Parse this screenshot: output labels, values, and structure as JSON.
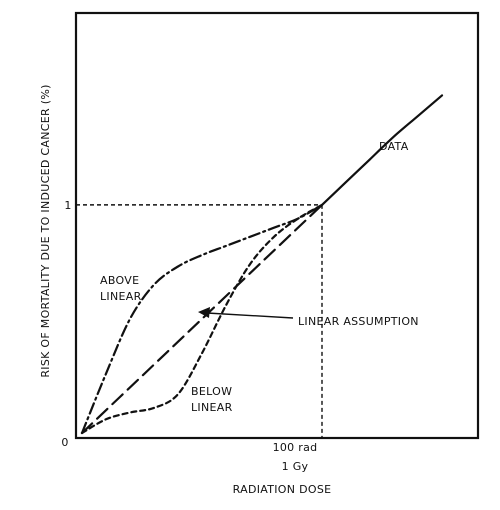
{
  "chart_data": {
    "type": "line",
    "title": "",
    "xlabel": "RADIATION DOSE",
    "ylabel": "RISK OF MORTALITY DUE TO INDUCED CANCER (%)",
    "x_tick_labels": {
      "origin": "0",
      "dose_line1": "100 rad",
      "dose_line2": "1 Gy"
    },
    "y_tick_labels": {
      "one": "1"
    },
    "xlim": [
      0,
      150
    ],
    "ylim": [
      0,
      1.6
    ],
    "reference": {
      "x": 100,
      "y": 1
    },
    "grid": false,
    "legend": "none",
    "series": [
      {
        "key": "data",
        "name": "DATA",
        "style": "solid",
        "x": [
          100,
          110,
          120,
          130,
          140,
          150
        ],
        "y": [
          1.0,
          1.1,
          1.2,
          1.3,
          1.39,
          1.48
        ]
      },
      {
        "key": "linear",
        "name": "LINEAR ASSUMPTION",
        "style": "long-dash",
        "x": [
          0,
          25,
          50,
          75,
          100
        ],
        "y": [
          0,
          0.25,
          0.5,
          0.75,
          1.0
        ]
      },
      {
        "key": "above",
        "name": "ABOVE LINEAR",
        "style": "dash-dot",
        "x": [
          0,
          10,
          20,
          30,
          40,
          50,
          60,
          70,
          80,
          90,
          100
        ],
        "y": [
          0,
          0.26,
          0.5,
          0.65,
          0.73,
          0.78,
          0.82,
          0.86,
          0.9,
          0.94,
          1.0
        ]
      },
      {
        "key": "below",
        "name": "BELOW LINEAR",
        "style": "short-dash",
        "x": [
          0,
          10,
          20,
          30,
          40,
          50,
          60,
          70,
          80,
          90,
          100
        ],
        "y": [
          0,
          0.06,
          0.09,
          0.11,
          0.17,
          0.35,
          0.56,
          0.74,
          0.86,
          0.94,
          1.0
        ]
      }
    ],
    "annotations": {
      "data": "DATA",
      "above_line1": "ABOVE",
      "above_line2": "LINEAR",
      "below_line1": "BELOW",
      "below_line2": "LINEAR",
      "linear_assumption": "LINEAR ASSUMPTION"
    }
  }
}
